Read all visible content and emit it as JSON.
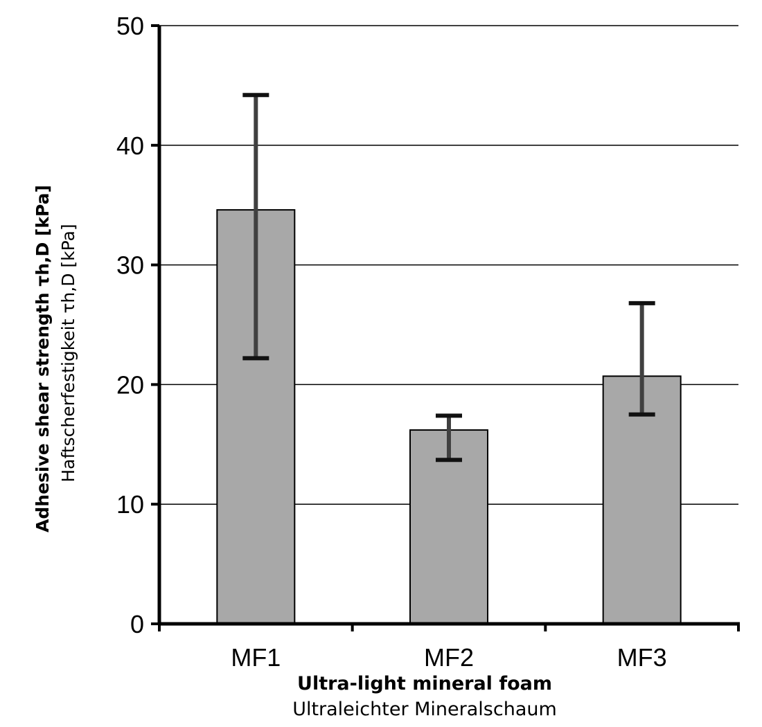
{
  "chart_data": {
    "type": "bar",
    "categories": [
      "MF1",
      "MF2",
      "MF3"
    ],
    "values": [
      34.6,
      16.2,
      20.7
    ],
    "error_high": [
      44.2,
      17.4,
      26.8
    ],
    "error_low": [
      22.2,
      13.7,
      17.5
    ],
    "ylim": [
      0,
      50
    ],
    "yticks": [
      "0",
      "10",
      "20",
      "30",
      "40",
      "50"
    ],
    "ytick_values": [
      0,
      10,
      20,
      30,
      40,
      50
    ],
    "ylabel": "Adhesive shear strength τh,D [kPa]",
    "ylabel_secondary": "Haftscherfestigkeit τh,D [kPa]",
    "xlabel": "Ultra-light mineral foam",
    "xlabel_secondary": "Ultraleichter Mineralschaum",
    "grid": true,
    "bar_color": "#a8a8a8",
    "error_bar_color": "#404040"
  }
}
